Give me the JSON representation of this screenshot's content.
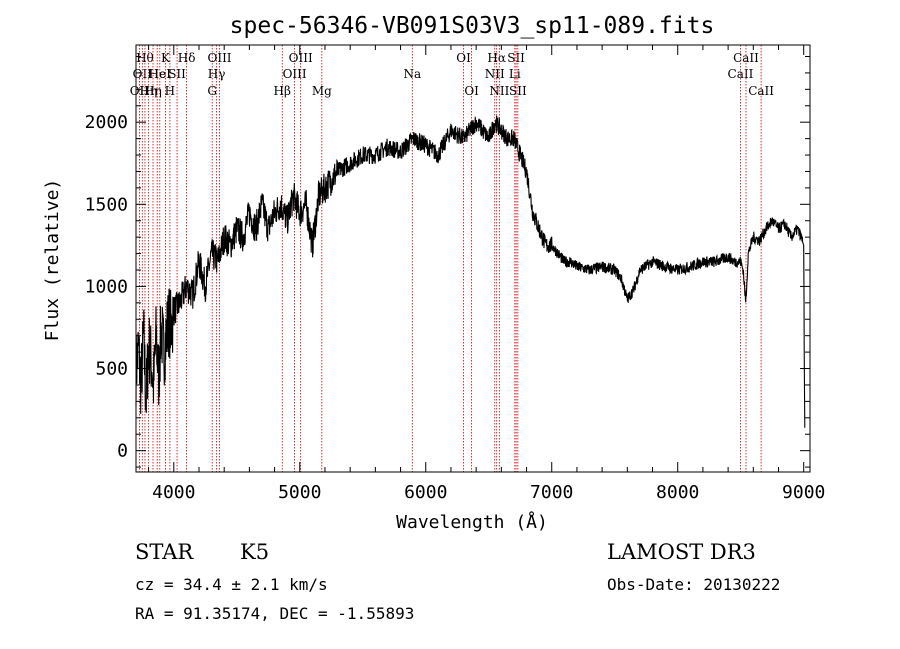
{
  "chart_data": {
    "type": "line",
    "title": "spec-56346-VB091S03V3_sp11-089.fits",
    "xlabel": "Wavelength (Å)",
    "ylabel": "Flux (relative)",
    "xlim": [
      3700,
      9050
    ],
    "ylim": [
      -130,
      2470
    ],
    "xticks": [
      4000,
      5000,
      6000,
      7000,
      8000,
      9000
    ],
    "yticks": [
      0,
      500,
      1000,
      1500,
      2000
    ],
    "series": [
      {
        "name": "flux",
        "x": [
          3700,
          3720,
          3740,
          3760,
          3780,
          3800,
          3820,
          3840,
          3860,
          3880,
          3900,
          3920,
          3940,
          3960,
          3980,
          4000,
          4050,
          4100,
          4150,
          4200,
          4250,
          4300,
          4350,
          4400,
          4450,
          4500,
          4550,
          4600,
          4650,
          4700,
          4750,
          4800,
          4850,
          4900,
          4950,
          5000,
          5050,
          5100,
          5150,
          5200,
          5250,
          5300,
          5400,
          5500,
          5600,
          5700,
          5800,
          5900,
          6000,
          6100,
          6200,
          6300,
          6400,
          6450,
          6500,
          6550,
          6600,
          6650,
          6700,
          6750,
          6800,
          6850,
          6900,
          6950,
          7000,
          7050,
          7100,
          7150,
          7200,
          7300,
          7400,
          7500,
          7550,
          7600,
          7650,
          7700,
          7800,
          7900,
          8000,
          8100,
          8200,
          8300,
          8400,
          8450,
          8500,
          8520,
          8540,
          8560,
          8600,
          8650,
          8700,
          8750,
          8800,
          8850,
          8900,
          8950,
          8980,
          9000,
          9005,
          9010
        ],
        "y": [
          500,
          620,
          400,
          700,
          300,
          650,
          550,
          400,
          700,
          450,
          750,
          600,
          700,
          800,
          750,
          850,
          900,
          1000,
          950,
          1150,
          1000,
          1200,
          1150,
          1300,
          1250,
          1350,
          1300,
          1450,
          1350,
          1500,
          1350,
          1450,
          1500,
          1400,
          1550,
          1450,
          1500,
          1250,
          1550,
          1600,
          1650,
          1700,
          1750,
          1800,
          1800,
          1850,
          1820,
          1900,
          1860,
          1800,
          1950,
          1900,
          2000,
          1950,
          1900,
          2000,
          1950,
          1900,
          1900,
          1800,
          1700,
          1450,
          1350,
          1250,
          1250,
          1200,
          1150,
          1150,
          1120,
          1100,
          1120,
          1100,
          1050,
          920,
          980,
          1100,
          1150,
          1120,
          1100,
          1120,
          1150,
          1150,
          1180,
          1150,
          1150,
          1100,
          900,
          1200,
          1300,
          1280,
          1350,
          1400,
          1350,
          1380,
          1300,
          1350,
          1300,
          1250,
          500,
          0
        ]
      }
    ],
    "lines": [
      {
        "wl": 3727,
        "label": "OII",
        "row": 2
      },
      {
        "wl": 3750,
        "label": "OII",
        "row": 1
      },
      {
        "wl": 3771,
        "label": "Hθ",
        "row": 0
      },
      {
        "wl": 3798,
        "label": "Hη",
        "row": 2
      },
      {
        "wl": 3835,
        "label": "Hη",
        "row": 2
      },
      {
        "wl": 3868,
        "label": "He",
        "row": 1
      },
      {
        "wl": 3889,
        "label": "HeI",
        "row": 1
      },
      {
        "wl": 3934,
        "label": "K",
        "row": 0
      },
      {
        "wl": 3969,
        "label": "H",
        "row": 2
      },
      {
        "wl": 4026,
        "label": "SII",
        "row": 1
      },
      {
        "wl": 4102,
        "label": "Hδ",
        "row": 0
      },
      {
        "wl": 4305,
        "label": "G",
        "row": 2
      },
      {
        "wl": 4340,
        "label": "Hγ",
        "row": 1
      },
      {
        "wl": 4363,
        "label": "OIII",
        "row": 0
      },
      {
        "wl": 4861,
        "label": "Hβ",
        "row": 2
      },
      {
        "wl": 4959,
        "label": "OIII",
        "row": 1
      },
      {
        "wl": 5007,
        "label": "OIII",
        "row": 0
      },
      {
        "wl": 5175,
        "label": "Mg",
        "row": 2
      },
      {
        "wl": 5893,
        "label": "Na",
        "row": 1
      },
      {
        "wl": 6300,
        "label": "OI",
        "row": 0
      },
      {
        "wl": 6364,
        "label": "OI",
        "row": 2
      },
      {
        "wl": 6548,
        "label": "NII",
        "row": 1
      },
      {
        "wl": 6563,
        "label": "Hα",
        "row": 0
      },
      {
        "wl": 6584,
        "label": "NII",
        "row": 2
      },
      {
        "wl": 6707,
        "label": "Li",
        "row": 1
      },
      {
        "wl": 6717,
        "label": "SII",
        "row": 0
      },
      {
        "wl": 6731,
        "label": "SII",
        "row": 2
      },
      {
        "wl": 8498,
        "label": "CaII",
        "row": 1
      },
      {
        "wl": 8542,
        "label": "CaII",
        "row": 0
      },
      {
        "wl": 8662,
        "label": "CaII",
        "row": 2
      }
    ]
  },
  "footer": {
    "object_type": "STAR",
    "subclass": "K5",
    "survey": "LAMOST DR3",
    "redshift": "cz = 34.4 ± 2.1 km/s",
    "obs_date": "Obs-Date: 20130222",
    "coords": "RA =  91.35174, DEC =  -1.55893"
  }
}
